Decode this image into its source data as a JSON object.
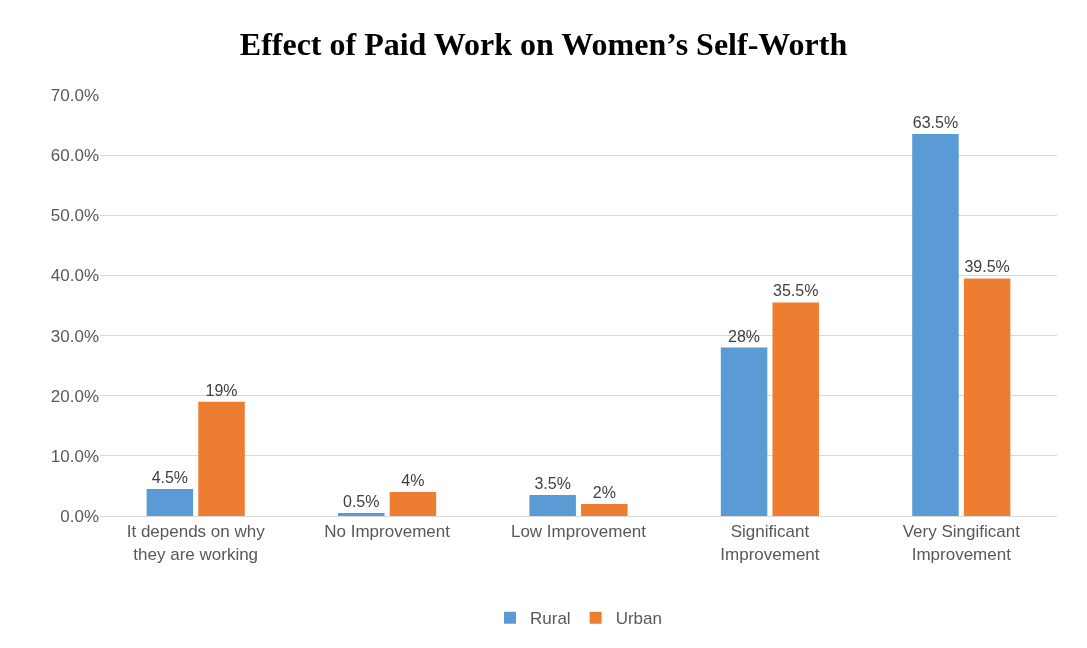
{
  "chart_data": {
    "type": "bar",
    "title": "Effect of Paid Work on Women’s Self-Worth",
    "categories": [
      "It depends on why they are working",
      "No Improvement",
      "Low Improvement",
      "Significant Improvement",
      "Very Singificant Improvement"
    ],
    "series": [
      {
        "name": "Rural",
        "color": "#5b9bd5",
        "values": [
          4.5,
          0.5,
          3.5,
          28,
          63.5
        ],
        "value_labels": [
          "4.5%",
          "0.5%",
          "3.5%",
          "28%",
          "63.5%"
        ]
      },
      {
        "name": "Urban",
        "color": "#ed7d31",
        "values": [
          19,
          4,
          2,
          35.5,
          39.5
        ],
        "value_labels": [
          "19%",
          "4%",
          "2%",
          "35.5%",
          "39.5%"
        ]
      }
    ],
    "ylim": [
      0,
      70
    ],
    "yticks": [
      {
        "value": 0,
        "label": "0.0%"
      },
      {
        "value": 10,
        "label": "10.0%"
      },
      {
        "value": 20,
        "label": "20.0%"
      },
      {
        "value": 30,
        "label": "30.0%"
      },
      {
        "value": 40,
        "label": "40.0%"
      },
      {
        "value": 50,
        "label": "50.0%"
      },
      {
        "value": 60,
        "label": "60.0%"
      },
      {
        "value": 70,
        "label": "70.0%"
      }
    ],
    "grid": "y",
    "legend": "bottom"
  }
}
